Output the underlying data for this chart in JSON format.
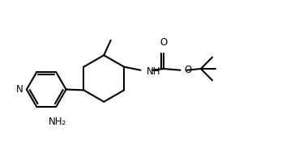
{
  "bg_color": "#ffffff",
  "line_color": "#000000",
  "line_width": 1.5,
  "font_size": 8.5,
  "figsize": [
    3.58,
    1.94
  ],
  "dpi": 100,
  "xlim": [
    0,
    10.5
  ],
  "ylim": [
    0.5,
    6.0
  ]
}
